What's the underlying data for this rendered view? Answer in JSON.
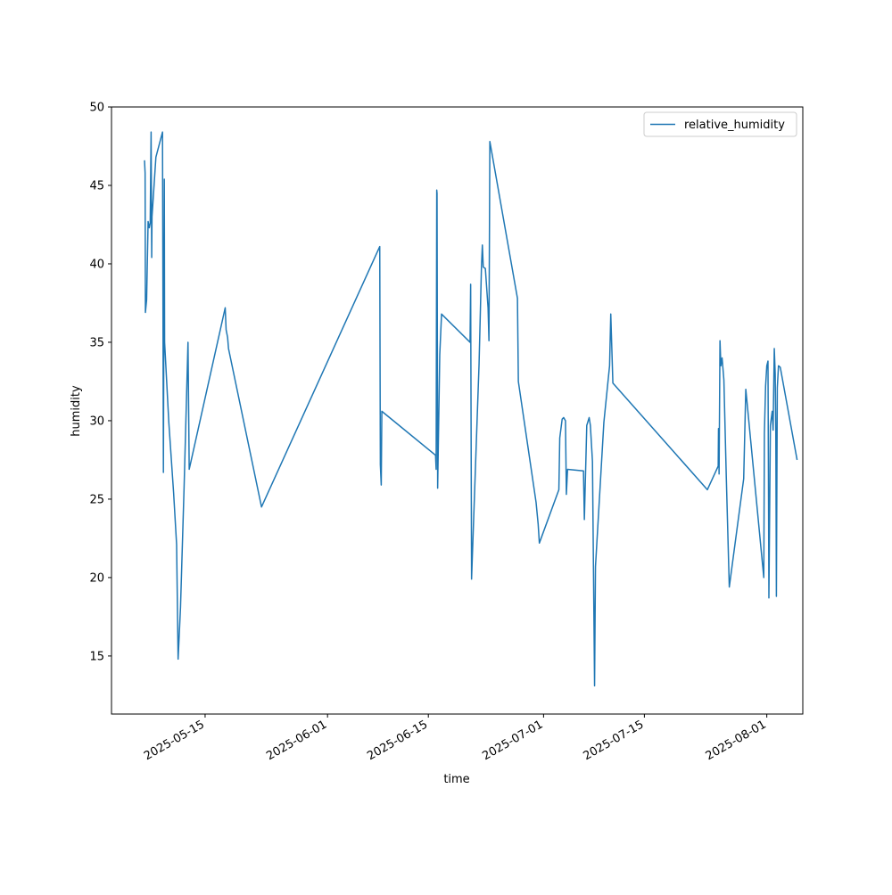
{
  "chart_data": {
    "type": "line",
    "xlabel": "time",
    "ylabel": "humidity",
    "xlim": [
      "2025-05-02",
      "2025-08-06"
    ],
    "ylim": [
      11.3,
      50
    ],
    "grid": false,
    "legend_position": "upper right",
    "x_ticks": [
      "2025-05-15",
      "2025-06-01",
      "2025-06-15",
      "2025-07-01",
      "2025-07-15",
      "2025-08-01"
    ],
    "y_ticks": [
      15,
      20,
      25,
      30,
      35,
      40,
      45,
      50
    ],
    "series": [
      {
        "name": "relative_humidity",
        "color": "#1f77b4",
        "points": [
          [
            "2025-05-06T14:00",
            46.6
          ],
          [
            "2025-05-06T16:00",
            45.8
          ],
          [
            "2025-05-06T17:00",
            36.9
          ],
          [
            "2025-05-06T21:00",
            37.7
          ],
          [
            "2025-05-07T02:00",
            42.7
          ],
          [
            "2025-05-07T06:00",
            42.3
          ],
          [
            "2025-05-07T09:00",
            42.6
          ],
          [
            "2025-05-07T12:00",
            48.4
          ],
          [
            "2025-05-07T14:00",
            40.4
          ],
          [
            "2025-05-07T15:00",
            43.0
          ],
          [
            "2025-05-08T04:00",
            46.8
          ],
          [
            "2025-05-09T02:00",
            48.4
          ],
          [
            "2025-05-09T05:00",
            26.7
          ],
          [
            "2025-05-09T08:00",
            45.4
          ],
          [
            "2025-05-09T09:00",
            35.0
          ],
          [
            "2025-05-09T23:00",
            29.9
          ],
          [
            "2025-05-10T15:00",
            25.4
          ],
          [
            "2025-05-11T01:00",
            22.1
          ],
          [
            "2025-05-11T06:00",
            14.8
          ],
          [
            "2025-05-11T14:00",
            18.1
          ],
          [
            "2025-05-12T02:00",
            25.8
          ],
          [
            "2025-05-12T15:00",
            35.0
          ],
          [
            "2025-05-12T19:00",
            26.9
          ],
          [
            "2025-05-17T19:00",
            37.2
          ],
          [
            "2025-05-17T22:00",
            35.8
          ],
          [
            "2025-05-18T03:00",
            35.3
          ],
          [
            "2025-05-18T06:00",
            34.6
          ],
          [
            "2025-05-22T20:00",
            24.5
          ],
          [
            "2025-06-08T06:00",
            41.1
          ],
          [
            "2025-06-08T08:00",
            27.2
          ],
          [
            "2025-06-08T11:00",
            25.9
          ],
          [
            "2025-06-08T13:00",
            30.6
          ],
          [
            "2025-06-16T00:00",
            27.8
          ],
          [
            "2025-06-16T02:00",
            26.9
          ],
          [
            "2025-06-16T04:00",
            44.7
          ],
          [
            "2025-06-16T05:00",
            44.5
          ],
          [
            "2025-06-16T07:00",
            25.7
          ],
          [
            "2025-06-16T14:00",
            34.2
          ],
          [
            "2025-06-16T20:00",
            36.8
          ],
          [
            "2025-06-20T19:00",
            35.0
          ],
          [
            "2025-06-20T21:00",
            38.7
          ],
          [
            "2025-06-21T00:00",
            19.9
          ],
          [
            "2025-06-22T01:00",
            33.6
          ],
          [
            "2025-06-22T09:00",
            39.8
          ],
          [
            "2025-06-22T12:00",
            41.2
          ],
          [
            "2025-06-22T15:00",
            39.8
          ],
          [
            "2025-06-22T22:00",
            39.7
          ],
          [
            "2025-06-23T07:00",
            37.2
          ],
          [
            "2025-06-23T10:00",
            35.1
          ],
          [
            "2025-06-23T13:00",
            47.8
          ],
          [
            "2025-06-27T09:00",
            37.8
          ],
          [
            "2025-06-27T12:00",
            32.5
          ],
          [
            "2025-06-29T23:00",
            24.8
          ],
          [
            "2025-06-30T06:00",
            23.4
          ],
          [
            "2025-06-30T10:00",
            22.2
          ],
          [
            "2025-07-03T03:00",
            25.6
          ],
          [
            "2025-07-03T06:00",
            28.9
          ],
          [
            "2025-07-03T14:00",
            30.1
          ],
          [
            "2025-07-03T19:00",
            30.2
          ],
          [
            "2025-07-04T01:00",
            30.0
          ],
          [
            "2025-07-04T04:00",
            25.3
          ],
          [
            "2025-07-04T08:00",
            26.9
          ],
          [
            "2025-07-06T13:00",
            26.8
          ],
          [
            "2025-07-06T16:00",
            23.7
          ],
          [
            "2025-07-07T00:00",
            29.7
          ],
          [
            "2025-07-07T08:00",
            30.2
          ],
          [
            "2025-07-07T12:00",
            29.7
          ],
          [
            "2025-07-07T19:00",
            27.4
          ],
          [
            "2025-07-08T02:00",
            13.1
          ],
          [
            "2025-07-08T05:00",
            20.7
          ],
          [
            "2025-07-09T09:00",
            29.9
          ],
          [
            "2025-07-10T04:00",
            33.5
          ],
          [
            "2025-07-10T08:00",
            36.8
          ],
          [
            "2025-07-10T15:00",
            32.4
          ],
          [
            "2025-07-23T18:00",
            25.6
          ],
          [
            "2025-07-25T06:00",
            27.1
          ],
          [
            "2025-07-25T07:00",
            29.5
          ],
          [
            "2025-07-25T09:00",
            26.6
          ],
          [
            "2025-07-25T12:00",
            35.1
          ],
          [
            "2025-07-25T15:00",
            33.5
          ],
          [
            "2025-07-25T19:00",
            34.0
          ],
          [
            "2025-07-26T01:00",
            32.6
          ],
          [
            "2025-07-26T09:00",
            26.4
          ],
          [
            "2025-07-26T19:00",
            19.4
          ],
          [
            "2025-07-28T19:00",
            26.3
          ],
          [
            "2025-07-29T02:00",
            32.0
          ],
          [
            "2025-07-31T14:00",
            20.0
          ],
          [
            "2025-07-31T16:00",
            29.2
          ],
          [
            "2025-07-31T20:00",
            32.2
          ],
          [
            "2025-08-01T00:00",
            33.5
          ],
          [
            "2025-08-01T04:00",
            33.8
          ],
          [
            "2025-08-01T07:00",
            18.7
          ],
          [
            "2025-08-01T12:00",
            29.7
          ],
          [
            "2025-08-01T18:00",
            30.6
          ],
          [
            "2025-08-01T21:00",
            29.4
          ],
          [
            "2025-08-02T01:00",
            34.6
          ],
          [
            "2025-08-02T04:00",
            33.0
          ],
          [
            "2025-08-02T06:00",
            29.4
          ],
          [
            "2025-08-02T08:00",
            18.8
          ],
          [
            "2025-08-02T11:00",
            32.1
          ],
          [
            "2025-08-02T15:00",
            33.5
          ],
          [
            "2025-08-02T21:00",
            33.4
          ],
          [
            "2025-08-05T05:00",
            27.5
          ]
        ]
      }
    ]
  }
}
